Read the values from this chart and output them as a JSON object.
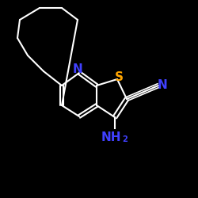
{
  "background_color": "#000000",
  "bond_color": "#ffffff",
  "bond_width": 1.5,
  "N_color": "#4040ff",
  "S_color": "#ffa500",
  "NH2_color": "#4040ff",
  "CN_N_color": "#4040ff",
  "figsize": [
    2.5,
    2.5
  ],
  "dpi": 100,
  "xlim": [
    0,
    250
  ],
  "ylim": [
    0,
    250
  ]
}
